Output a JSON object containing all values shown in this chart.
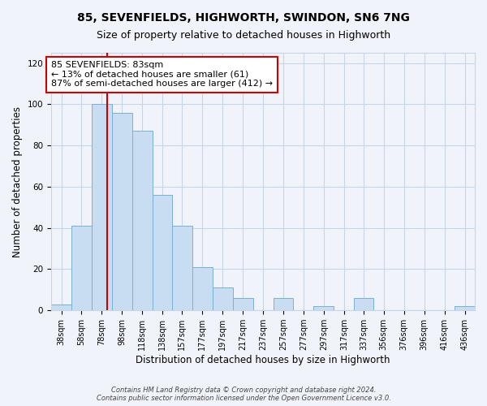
{
  "title": "85, SEVENFIELDS, HIGHWORTH, SWINDON, SN6 7NG",
  "subtitle": "Size of property relative to detached houses in Highworth",
  "xlabel": "Distribution of detached houses by size in Highworth",
  "ylabel": "Number of detached properties",
  "bar_labels": [
    "38sqm",
    "58sqm",
    "78sqm",
    "98sqm",
    "118sqm",
    "138sqm",
    "157sqm",
    "177sqm",
    "197sqm",
    "217sqm",
    "237sqm",
    "257sqm",
    "277sqm",
    "297sqm",
    "317sqm",
    "337sqm",
    "356sqm",
    "376sqm",
    "396sqm",
    "416sqm",
    "436sqm"
  ],
  "bar_heights": [
    3,
    41,
    100,
    96,
    87,
    56,
    41,
    21,
    11,
    6,
    0,
    6,
    0,
    2,
    0,
    6,
    0,
    0,
    0,
    0,
    2
  ],
  "bar_edges": [
    28,
    48,
    68,
    88,
    108,
    128,
    147,
    167,
    187,
    207,
    227,
    247,
    267,
    287,
    307,
    327,
    346,
    366,
    386,
    406,
    426,
    446
  ],
  "bar_color": "#c9ddf2",
  "bar_edge_color": "#7aafd4",
  "property_line_x": 83,
  "property_line_color": "#cc0000",
  "annotation_text": "85 SEVENFIELDS: 83sqm\n← 13% of detached houses are smaller (61)\n87% of semi-detached houses are larger (412) →",
  "annotation_box_color": "#ffffff",
  "annotation_box_edge_color": "#cc0000",
  "ylim": [
    0,
    125
  ],
  "yticks": [
    0,
    20,
    40,
    60,
    80,
    100,
    120
  ],
  "footer_line1": "Contains HM Land Registry data © Crown copyright and database right 2024.",
  "footer_line2": "Contains public sector information licensed under the Open Government Licence v3.0.",
  "bg_color": "#f0f4fa",
  "grid_color": "#c8d4e8",
  "title_fontsize": 10,
  "subtitle_fontsize": 9,
  "xlabel_fontsize": 8.5,
  "ylabel_fontsize": 8.5,
  "tick_fontsize": 7,
  "annotation_fontsize": 8,
  "footer_fontsize": 6
}
